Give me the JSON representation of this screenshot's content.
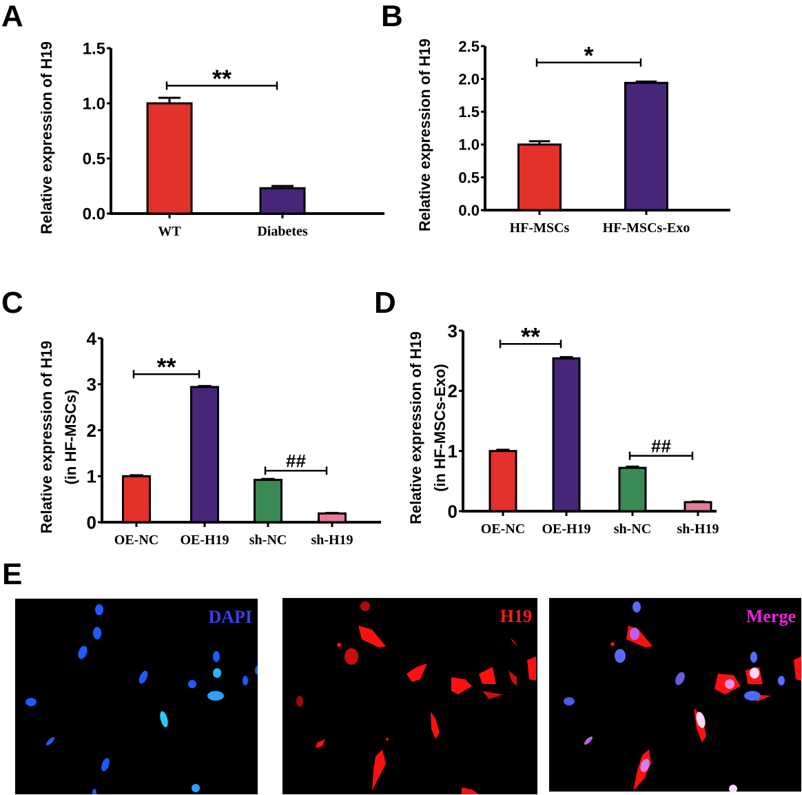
{
  "panels": {
    "A": {
      "letter": "A"
    },
    "B": {
      "letter": "B"
    },
    "C": {
      "letter": "C"
    },
    "D": {
      "letter": "D"
    },
    "E": {
      "letter": "E"
    }
  },
  "colors": {
    "red": "#E3312B",
    "purple": "#452678",
    "green": "#3A8A55",
    "pink": "#E87A9A",
    "dapi_label": "#3C3CF0",
    "h19_label": "#FF1A1A",
    "merge_label": "#F020E0"
  },
  "chart_data": [
    {
      "id": "A",
      "type": "bar",
      "title": "",
      "xlabel": "",
      "ylabel": "Relative expression of H19",
      "categories": [
        "WT",
        "Diabetes"
      ],
      "values": [
        1.0,
        0.23
      ],
      "errors": [
        0.05,
        0.02
      ],
      "bar_colors": [
        "#E3312B",
        "#452678"
      ],
      "ylim": [
        0,
        1.5
      ],
      "yticks": [
        "0.0",
        "0.5",
        "1.0",
        "1.5"
      ],
      "annotations": [
        {
          "text": "**",
          "from": "WT",
          "to": "Diabetes",
          "y": 1.16
        }
      ],
      "grid": false,
      "legend": null
    },
    {
      "id": "B",
      "type": "bar",
      "title": "",
      "xlabel": "",
      "ylabel": "Relative expression of H19",
      "categories": [
        "HF-MSCs",
        "HF-MSCs-Exo"
      ],
      "values": [
        1.0,
        1.94
      ],
      "errors": [
        0.05,
        0.02
      ],
      "bar_colors": [
        "#E3312B",
        "#452678"
      ],
      "ylim": [
        0,
        2.5
      ],
      "yticks": [
        "0.0",
        "0.5",
        "1.0",
        "1.5",
        "2.0",
        "2.5"
      ],
      "annotations": [
        {
          "text": "*",
          "from": "HF-MSCs",
          "to": "HF-MSCs-Exo",
          "y": 2.25
        }
      ],
      "grid": false,
      "legend": null
    },
    {
      "id": "C",
      "type": "bar",
      "title": "",
      "xlabel": "",
      "ylabel": "Relative expression of H19 (in HF-MSCs)",
      "ylabel_lines": [
        "Relative expression of H19",
        "(in HF-MSCs)"
      ],
      "categories": [
        "OE-NC",
        "OE-H19",
        "sh-NC",
        "sh-H19"
      ],
      "values": [
        1.0,
        2.94,
        0.92,
        0.19
      ],
      "errors": [
        0.02,
        0.02,
        0.02,
        0.01
      ],
      "bar_colors": [
        "#E3312B",
        "#452678",
        "#3A8A55",
        "#E87A9A"
      ],
      "ylim": [
        0,
        4
      ],
      "yticks": [
        "0",
        "1",
        "2",
        "3",
        "4"
      ],
      "annotations": [
        {
          "text": "**",
          "from": "OE-NC",
          "to": "OE-H19",
          "y": 3.22
        },
        {
          "text": "##",
          "from": "sh-NC",
          "to": "sh-H19",
          "y": 1.12
        }
      ],
      "grid": false,
      "legend": null
    },
    {
      "id": "D",
      "type": "bar",
      "title": "",
      "xlabel": "",
      "ylabel": "Relative expression of H19 (in HF-MSCs-Exo)",
      "ylabel_lines": [
        "Relative expression of H19",
        "(in HF-MSCs-Exo)"
      ],
      "categories": [
        "OE-NC",
        "OE-H19",
        "sh-NC",
        "sh-H19"
      ],
      "values": [
        1.0,
        2.54,
        0.72,
        0.15
      ],
      "errors": [
        0.02,
        0.02,
        0.02,
        0.01
      ],
      "bar_colors": [
        "#E3312B",
        "#452678",
        "#3A8A55",
        "#E87A9A"
      ],
      "ylim": [
        0,
        3
      ],
      "yticks": [
        "0",
        "1",
        "2",
        "3"
      ],
      "annotations": [
        {
          "text": "**",
          "from": "OE-NC",
          "to": "OE-H19",
          "y": 2.78
        },
        {
          "text": "##",
          "from": "sh-NC",
          "to": "sh-H19",
          "y": 0.92
        }
      ],
      "grid": false,
      "legend": null
    }
  ],
  "micrographs": [
    {
      "label": "DAPI",
      "channel": "blue"
    },
    {
      "label": "H19",
      "channel": "red"
    },
    {
      "label": "Merge",
      "channel": "merge"
    }
  ]
}
